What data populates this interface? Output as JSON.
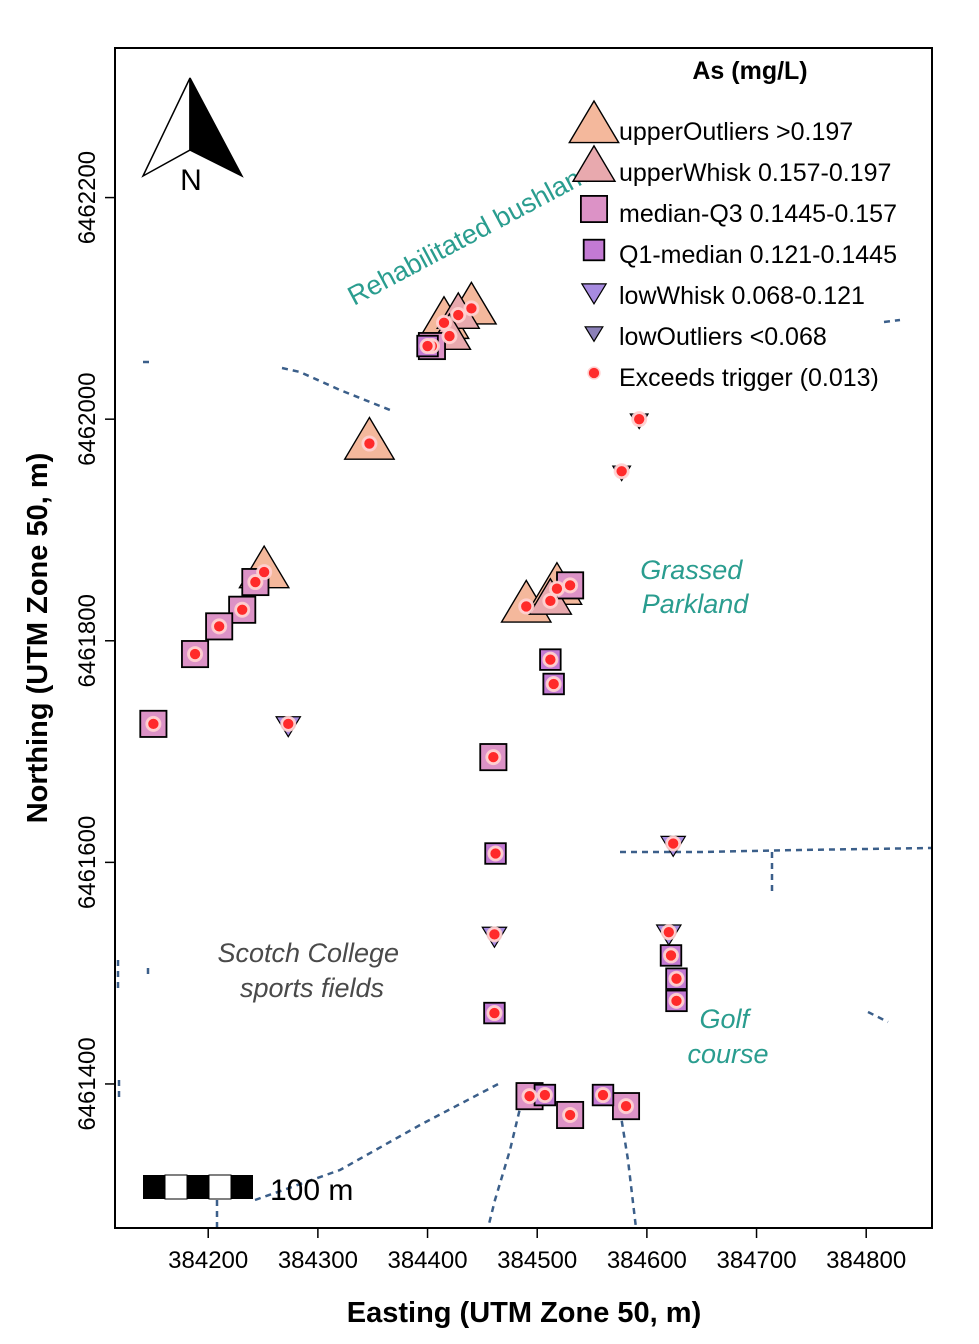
{
  "chart_data": {
    "type": "scatter",
    "xlabel": "Easting (UTM Zone 50, m)",
    "ylabel": "Northing (UTM Zone 50, m)",
    "xlim": [
      384115,
      384860
    ],
    "ylim": [
      6461270,
      6462335
    ],
    "x_ticks": [
      384200,
      384300,
      384400,
      384500,
      384600,
      384700,
      384800
    ],
    "y_ticks": [
      6461400,
      6461600,
      6461800,
      6462000,
      6462200
    ],
    "legend": {
      "title": "As (mg/L)",
      "position": "top-right",
      "entries": [
        {
          "key": "upperOutliers",
          "label": "upperOutliers >0.197",
          "shape": "triangle-up",
          "size": 1.0,
          "fill": "#f4b89c"
        },
        {
          "key": "upperWhisk",
          "label": "upperWhisk 0.157-0.197",
          "shape": "triangle-up",
          "size": 0.85,
          "fill": "#e8a9ae"
        },
        {
          "key": "medianQ3",
          "label": "median-Q3 0.1445-0.157",
          "shape": "square",
          "size": 0.7,
          "fill": "#dc92c6"
        },
        {
          "key": "Q1median",
          "label": "Q1-median 0.121-0.1445",
          "shape": "square",
          "size": 0.55,
          "fill": "#c37ad3"
        },
        {
          "key": "lowWhisk",
          "label": "lowWhisk 0.068-0.121",
          "shape": "triangle-down",
          "size": 0.55,
          "fill": "#a78be0"
        },
        {
          "key": "lowOutliers",
          "label": "lowOutliers <0.068",
          "shape": "triangle-down",
          "size": 0.4,
          "fill": "#8b80b8"
        },
        {
          "key": "exceeds",
          "label": "Exceeds trigger (0.013)",
          "shape": "dot",
          "size": 0.35,
          "fill": "#ff2a2a"
        }
      ]
    },
    "points": [
      {
        "x": 384347,
        "y": 6461978,
        "class": "upperOutliers"
      },
      {
        "x": 384251,
        "y": 6461862,
        "class": "upperOutliers"
      },
      {
        "x": 384440,
        "y": 6462100,
        "class": "upperOutliers"
      },
      {
        "x": 384415,
        "y": 6462087,
        "class": "upperOutliers"
      },
      {
        "x": 384490,
        "y": 6461831,
        "class": "upperOutliers"
      },
      {
        "x": 384518,
        "y": 6461847,
        "class": "upperOutliers"
      },
      {
        "x": 384428,
        "y": 6462094,
        "class": "upperWhisk"
      },
      {
        "x": 384420,
        "y": 6462075,
        "class": "upperWhisk"
      },
      {
        "x": 384512,
        "y": 6461836,
        "class": "upperWhisk"
      },
      {
        "x": 384530,
        "y": 6461850,
        "class": "medianQ3"
      },
      {
        "x": 384243,
        "y": 6461853,
        "class": "medianQ3"
      },
      {
        "x": 384231,
        "y": 6461828,
        "class": "medianQ3"
      },
      {
        "x": 384210,
        "y": 6461813,
        "class": "medianQ3"
      },
      {
        "x": 384188,
        "y": 6461788,
        "class": "medianQ3"
      },
      {
        "x": 384150,
        "y": 6461725,
        "class": "medianQ3"
      },
      {
        "x": 384460,
        "y": 6461695,
        "class": "medianQ3"
      },
      {
        "x": 384493,
        "y": 6461389,
        "class": "medianQ3"
      },
      {
        "x": 384530,
        "y": 6461372,
        "class": "medianQ3"
      },
      {
        "x": 384581,
        "y": 6461380,
        "class": "medianQ3"
      },
      {
        "x": 384404,
        "y": 6462066,
        "class": "medianQ3"
      },
      {
        "x": 384400,
        "y": 6462066,
        "class": "Q1median"
      },
      {
        "x": 384512,
        "y": 6461783,
        "class": "Q1median"
      },
      {
        "x": 384515,
        "y": 6461761,
        "class": "Q1median"
      },
      {
        "x": 384462,
        "y": 6461608,
        "class": "Q1median"
      },
      {
        "x": 384461,
        "y": 6461464,
        "class": "Q1median"
      },
      {
        "x": 384507,
        "y": 6461390,
        "class": "Q1median"
      },
      {
        "x": 384560,
        "y": 6461390,
        "class": "Q1median"
      },
      {
        "x": 384622,
        "y": 6461516,
        "class": "Q1median"
      },
      {
        "x": 384627,
        "y": 6461495,
        "class": "Q1median"
      },
      {
        "x": 384627,
        "y": 6461475,
        "class": "Q1median"
      },
      {
        "x": 384273,
        "y": 6461725,
        "class": "lowWhisk"
      },
      {
        "x": 384624,
        "y": 6461617,
        "class": "lowWhisk"
      },
      {
        "x": 384461,
        "y": 6461535,
        "class": "lowWhisk"
      },
      {
        "x": 384620,
        "y": 6461537,
        "class": "lowWhisk"
      },
      {
        "x": 384593,
        "y": 6462000,
        "class": "lowOutliers"
      },
      {
        "x": 384577,
        "y": 6461953,
        "class": "lowOutliers"
      }
    ],
    "area_labels": [
      {
        "lines": [
          "Rehabilitated bushland"
        ],
        "color": "#2a9d8f",
        "rotate": true
      },
      {
        "lines": [
          "Grassed",
          "Parkland"
        ],
        "color": "#2a9d8f"
      },
      {
        "lines": [
          "Scotch College",
          "sports fields"
        ],
        "color": "#4a4a4a"
      },
      {
        "lines": [
          "Golf",
          "course"
        ],
        "color": "#2a9d8f"
      }
    ],
    "scale_bar_label": "100 m",
    "north_arrow_label": "N",
    "colors": {
      "boundary": "#3b5f8a",
      "outline": "#000000",
      "exceeds_halo": "#ffd0d0"
    }
  }
}
